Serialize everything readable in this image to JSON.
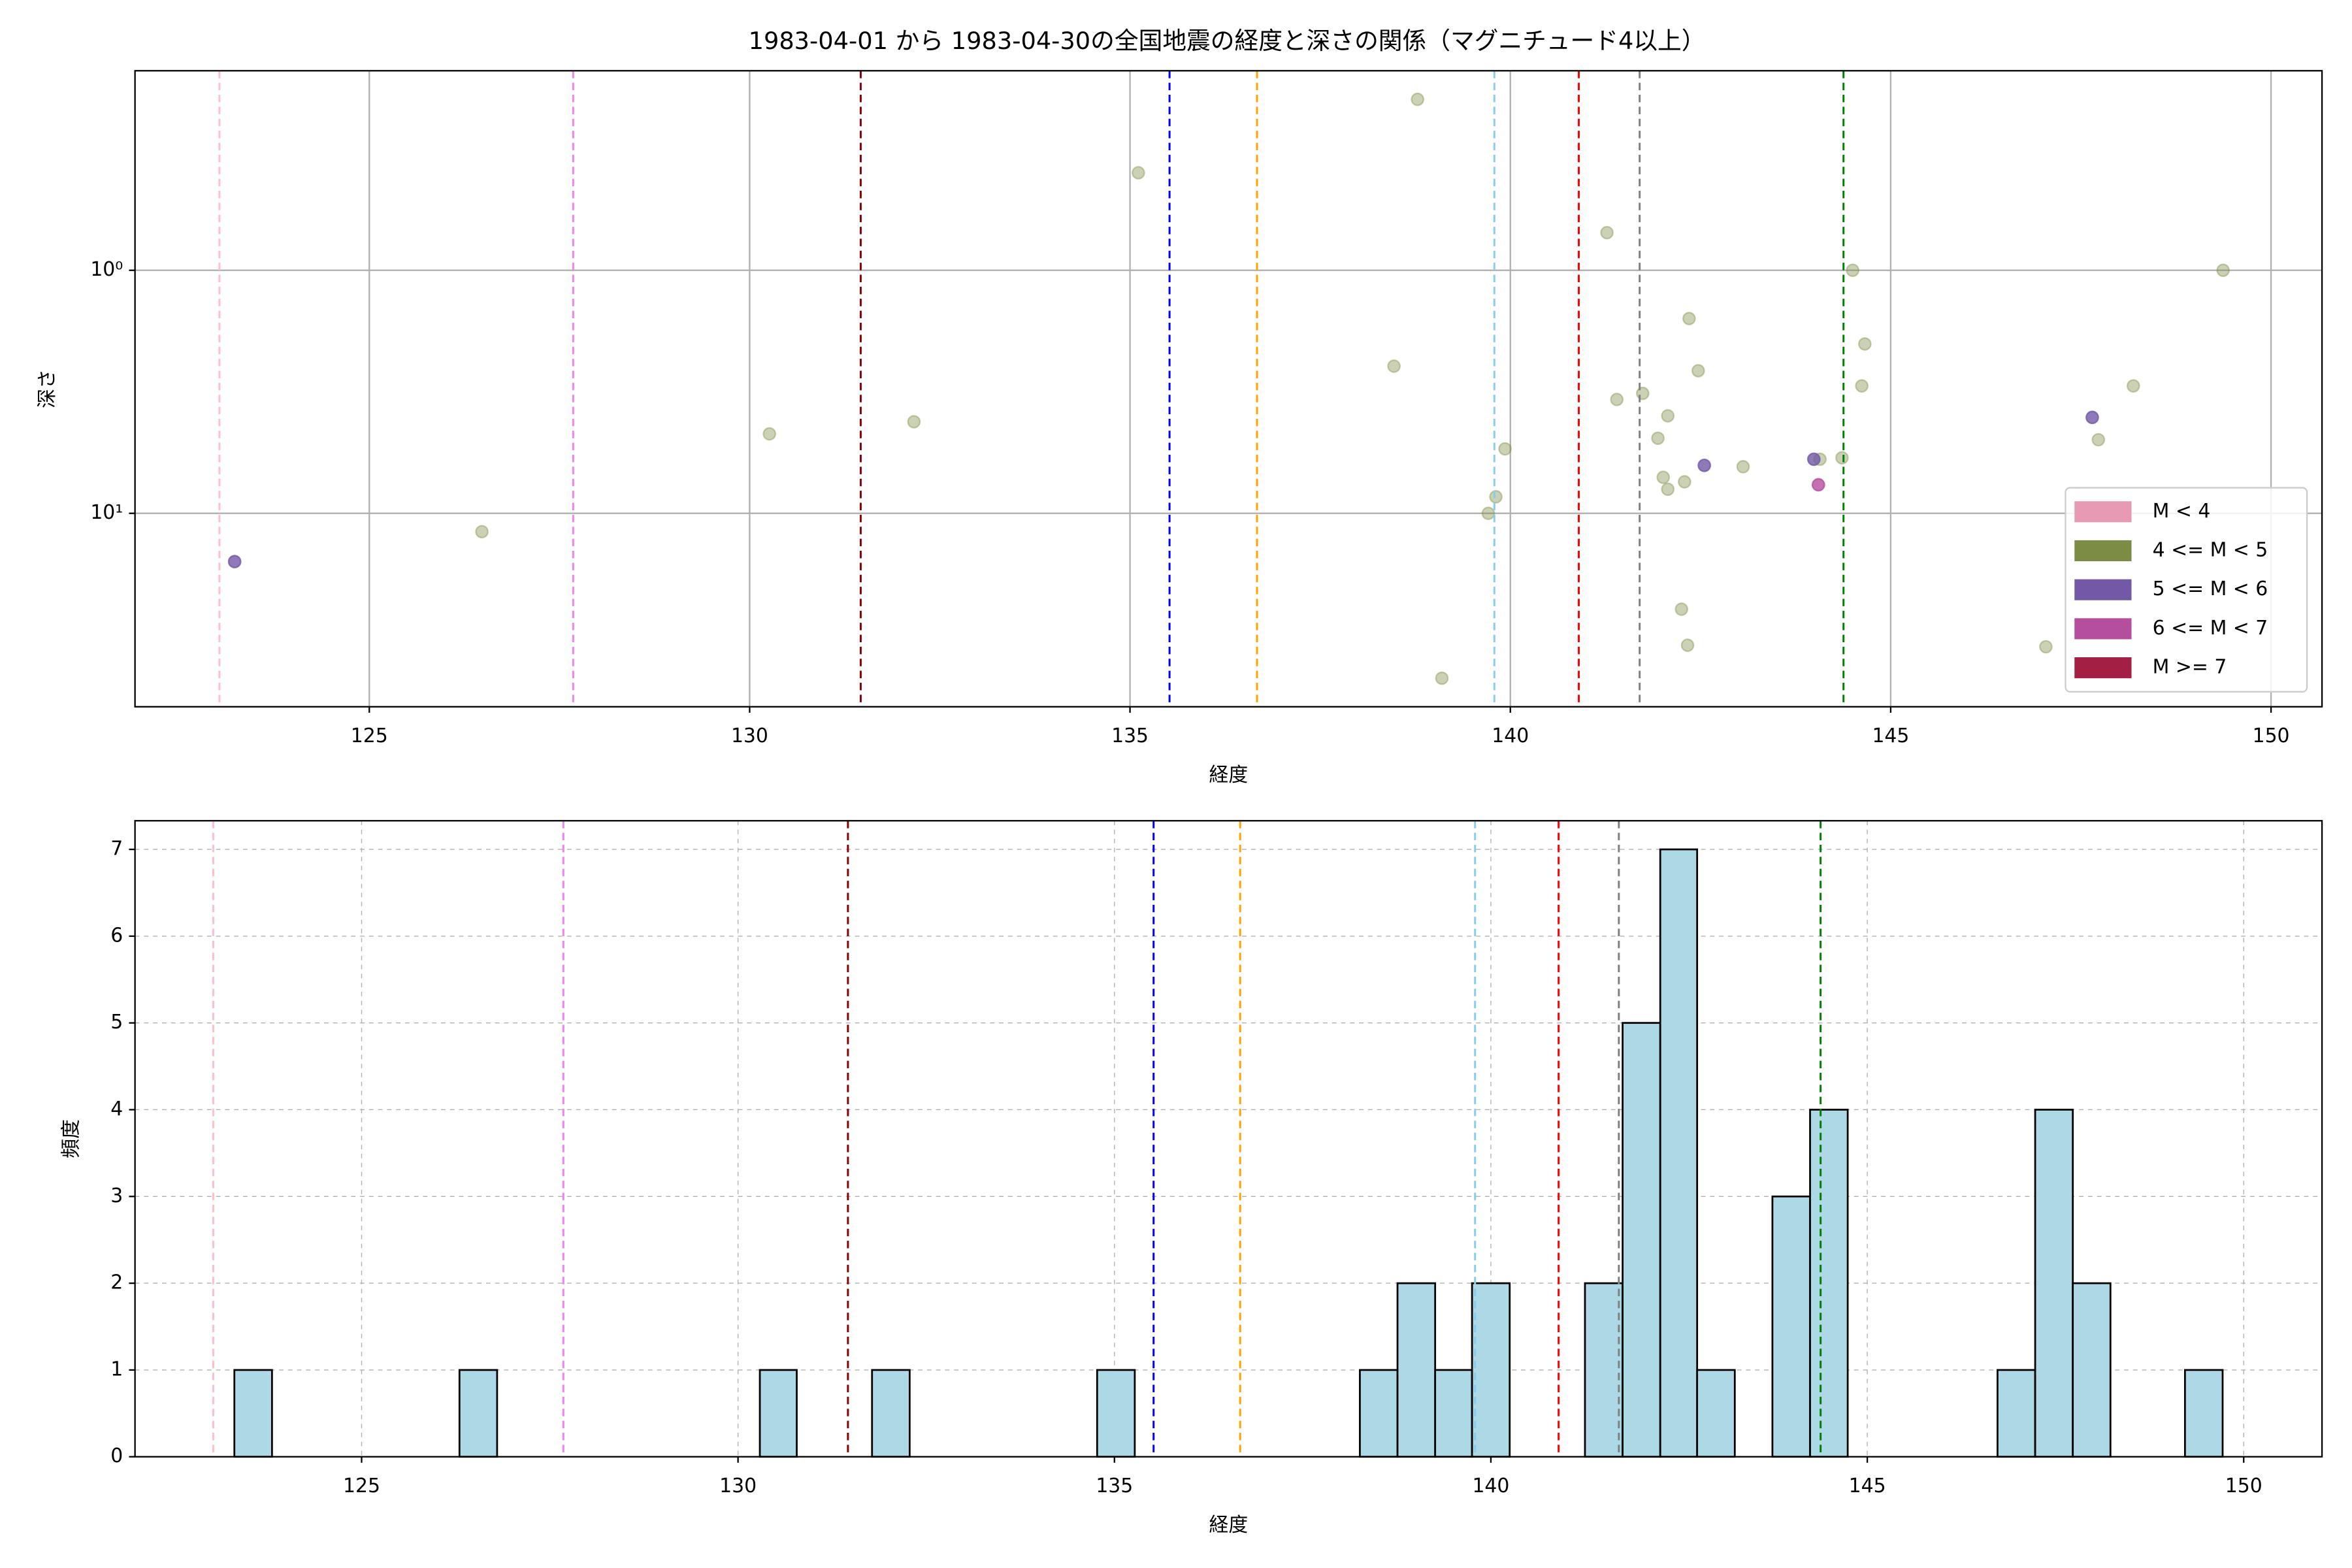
{
  "chart_data": [
    {
      "type": "scatter",
      "title": "1983-04-01 から 1983-04-30の全国地震の経度と深さの関係（マグニチュード4以上）",
      "x_label": "経度",
      "y_label": "深さ",
      "xlim": [
        121.92,
        150.67
      ],
      "xticks": [
        125,
        130,
        135,
        140,
        145,
        150
      ],
      "y_scale": "log",
      "ylim": [
        62.5,
        0.151
      ],
      "yticks": [
        {
          "value": 1,
          "label": "10⁰"
        },
        {
          "value": 10,
          "label": "10¹"
        }
      ],
      "grid": true,
      "grid_linestyle": "solid",
      "legend": "lower right",
      "vlines": [
        {
          "x": 123.03,
          "color": "pink"
        },
        {
          "x": 127.68,
          "color": "violet"
        },
        {
          "x": 131.46,
          "color": "darkred"
        },
        {
          "x": 135.52,
          "color": "blue"
        },
        {
          "x": 136.67,
          "color": "orange"
        },
        {
          "x": 139.79,
          "color": "skyblue"
        },
        {
          "x": 140.9,
          "color": "red"
        },
        {
          "x": 141.7,
          "color": "gray"
        },
        {
          "x": 144.38,
          "color": "green"
        }
      ],
      "series": [
        {
          "name": "M < 4",
          "color": "#e79ab4",
          "x": [],
          "y": []
        },
        {
          "name": "4 <= M < 5",
          "color": "#7c8c44",
          "x": [
            126.48,
            130.26,
            132.16,
            135.11,
            138.47,
            138.78,
            139.1,
            139.71,
            139.81,
            139.93,
            141.27,
            141.4,
            141.74,
            141.94,
            142.07,
            142.01,
            142.07,
            142.29,
            142.35,
            142.47,
            142.25,
            142.33,
            143.06,
            144.07,
            144.36,
            144.5,
            144.66,
            144.62,
            147.04,
            147.73,
            148.19,
            149.37
          ],
          "y": [
            11.9,
            4.71,
            4.2,
            0.397,
            2.48,
            0.198,
            47.7,
            10,
            8.55,
            5.43,
            0.7,
            3.4,
            3.21,
            4.91,
            3.97,
            7.11,
            7.96,
            7.42,
            1.58,
            2.59,
            24.8,
            34.9,
            6.43,
            5.99,
            5.91,
            1.0,
            2.01,
            2.99,
            35.4,
            4.98,
            2.99,
            1.0
          ]
        },
        {
          "name": "5 <= M < 6",
          "color": "#7358a7",
          "x": [
            123.23,
            142.55,
            143.99,
            147.65
          ],
          "y": [
            15.8,
            6.35,
            5.99,
            4.03
          ]
        },
        {
          "name": "6 <= M < 7",
          "color": "#b64e9e",
          "x": [
            144.05
          ],
          "y": [
            7.63
          ]
        },
        {
          "name": "M >= 7",
          "color": "#a31f43",
          "x": [],
          "y": []
        }
      ]
    },
    {
      "type": "histogram",
      "x_label": "経度",
      "y_label": "頻度",
      "xlim": [
        121.99,
        151.04
      ],
      "xticks": [
        125,
        130,
        135,
        140,
        145,
        150
      ],
      "ylim": [
        0,
        7.33
      ],
      "yticks": [
        0,
        1,
        2,
        3,
        4,
        5,
        6,
        7
      ],
      "grid": true,
      "grid_linestyle": "dashed",
      "color": "lightblue",
      "edgecolor": "black",
      "vlines": [
        {
          "x": 123.03,
          "color": "pink"
        },
        {
          "x": 127.68,
          "color": "violet"
        },
        {
          "x": 131.46,
          "color": "darkred"
        },
        {
          "x": 135.52,
          "color": "blue"
        },
        {
          "x": 136.67,
          "color": "orange"
        },
        {
          "x": 139.79,
          "color": "skyblue"
        },
        {
          "x": 140.9,
          "color": "red"
        },
        {
          "x": 141.7,
          "color": "gray"
        },
        {
          "x": 144.38,
          "color": "green"
        }
      ],
      "bins": [
        123.31,
        123.81,
        124.31,
        124.8,
        125.3,
        125.8,
        126.3,
        126.8,
        127.3,
        127.79,
        128.29,
        128.79,
        129.29,
        129.79,
        130.29,
        130.78,
        131.28,
        131.78,
        132.28,
        132.78,
        133.28,
        133.77,
        134.27,
        134.77,
        135.27,
        135.77,
        136.27,
        136.76,
        137.26,
        137.76,
        138.26,
        138.76,
        139.26,
        139.75,
        140.25,
        140.75,
        141.25,
        141.75,
        142.25,
        142.74,
        143.24,
        143.74,
        144.24,
        144.74,
        145.24,
        145.73,
        146.23,
        146.73,
        147.23,
        147.73,
        148.23,
        148.72,
        149.22,
        149.72
      ],
      "counts": [
        1,
        0,
        0,
        0,
        0,
        0,
        1,
        0,
        0,
        0,
        0,
        0,
        0,
        0,
        1,
        0,
        0,
        1,
        0,
        0,
        0,
        0,
        0,
        1,
        0,
        0,
        0,
        0,
        0,
        0,
        1,
        2,
        1,
        2,
        0,
        0,
        2,
        5,
        7,
        1,
        0,
        3,
        4,
        0,
        0,
        0,
        0,
        1,
        4,
        2,
        0,
        0,
        1
      ]
    }
  ]
}
